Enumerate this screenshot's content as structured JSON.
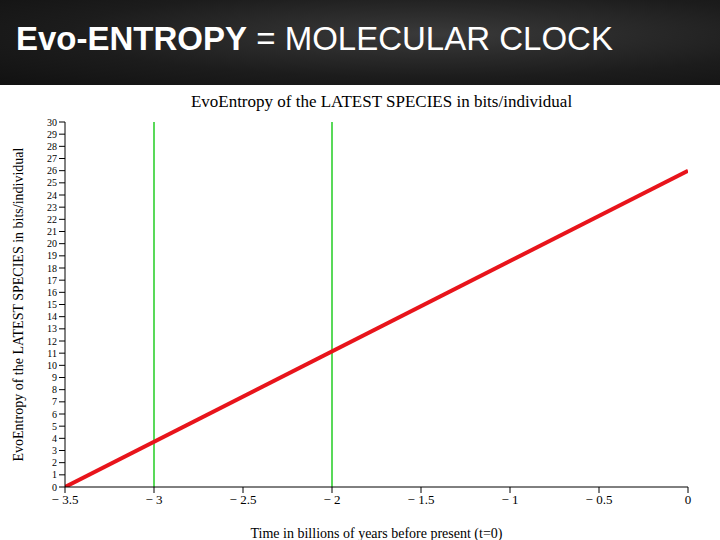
{
  "header": {
    "title_bold": "Evo-ENTROPY",
    "title_rest": "= MOLECULAR CLOCK"
  },
  "chart_data": {
    "type": "line",
    "title": "EvoEntropy of the LATEST SPECIES in bits/individual",
    "x_label": "Time in billions of years before present (t=0)",
    "y_label": "EvoEntropy of the LATEST SPECIES in bits/individual",
    "x": [
      -3.5,
      0
    ],
    "values": [
      0,
      26
    ],
    "color": "#e8141b",
    "xlim": [
      -3.5,
      0
    ],
    "xticks": [
      {
        "value": -3.5,
        "label": "− 3.5"
      },
      {
        "value": -3,
        "label": "− 3"
      },
      {
        "value": -2.5,
        "label": "− 2.5"
      },
      {
        "value": -2,
        "label": "− 2"
      },
      {
        "value": -1.5,
        "label": "− 1.5"
      },
      {
        "value": -1,
        "label": "− 1"
      },
      {
        "value": -0.5,
        "label": "− 0.5"
      },
      0
    ],
    "ylim": [
      0,
      30
    ],
    "yticks": [
      0,
      1,
      2,
      3,
      4,
      5,
      6,
      7,
      8,
      9,
      10,
      11,
      12,
      13,
      14,
      15,
      16,
      17,
      18,
      19,
      20,
      21,
      22,
      23,
      24,
      25,
      26,
      27,
      28,
      29,
      30
    ],
    "grid": false,
    "reference_lines": {
      "x": [
        -3,
        -2
      ],
      "color": "#22cc22"
    }
  }
}
